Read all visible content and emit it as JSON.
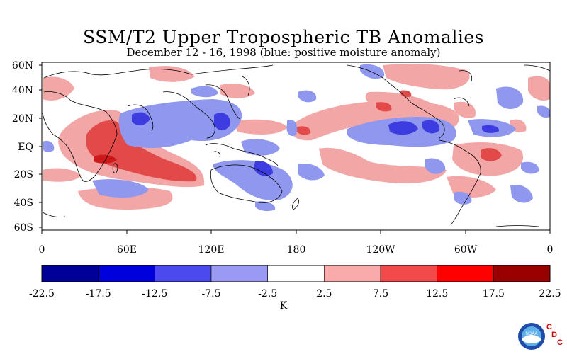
{
  "title": "SSM/T2 Upper Tropospheric TB Anomalies",
  "subtitle": "December 12 - 16, 1998 (blue: positive moisture anomaly)",
  "map": {
    "lat_labels": [
      "60N",
      "40N",
      "20N",
      "EQ",
      "20S",
      "40S",
      "60S"
    ],
    "lon_labels": [
      "0",
      "60E",
      "120E",
      "180",
      "120W",
      "60W",
      "0"
    ],
    "colors": {
      "strong_positive": "#dd3333",
      "positive": "#f3a6a6",
      "negative": "#8f98ee",
      "strong_negative": "#3c3ce0",
      "coast": "#000000"
    }
  },
  "colorbar": {
    "ticks": [
      "-22.5",
      "-17.5",
      "-12.5",
      "-7.5",
      "-2.5",
      "2.5",
      "7.5",
      "12.5",
      "17.5",
      "22.5"
    ],
    "colors": [
      "#000099",
      "#0000dd",
      "#4a4aef",
      "#9a9af5",
      "#ffffff",
      "#f9aaaa",
      "#f24a4a",
      "#ff0000",
      "#990000"
    ],
    "unit": "K"
  },
  "logo": {
    "noaa": "NOAA",
    "cdc_letters": [
      "C",
      "D",
      "C"
    ]
  }
}
